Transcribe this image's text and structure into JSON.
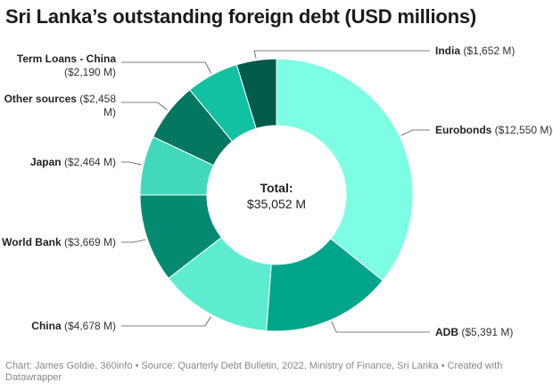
{
  "title": "Sri Lanka’s outstanding foreign debt (USD millions)",
  "center_label": {
    "title": "Total:",
    "value": "$35,052 M"
  },
  "footer": "Chart: James Goldie, 360info • Source: Quarterly Debt Bulletin, 2022, Ministry of Finance, Sri Lanka • Created with Datawrapper",
  "chart_data": {
    "type": "pie",
    "subtype": "donut",
    "unit": "USD millions",
    "slices": [
      {
        "name": "Eurobonds",
        "value": 12550,
        "value_label": "($12,550 M)",
        "color": "#7dfde4"
      },
      {
        "name": "ADB",
        "value": 5391,
        "value_label": "($5,391 M)",
        "color": "#01a68a"
      },
      {
        "name": "China",
        "value": 4678,
        "value_label": "($4,678 M)",
        "color": "#5eecd0"
      },
      {
        "name": "World Bank",
        "value": 3669,
        "value_label": "($3,669 M)",
        "color": "#058a72"
      },
      {
        "name": "Japan",
        "value": 2464,
        "value_label": "($2,464 M)",
        "color": "#42d8bc"
      },
      {
        "name": "Other sources",
        "value": 2458,
        "value_label": "($2,458 M)",
        "color": "#047761"
      },
      {
        "name": "Term Loans - China",
        "value": 2190,
        "value_label": "($2,190 M)",
        "color": "#12c1a2"
      },
      {
        "name": "India",
        "value": 1652,
        "value_label": "($1,652 M)",
        "color": "#035c4b"
      }
    ]
  }
}
